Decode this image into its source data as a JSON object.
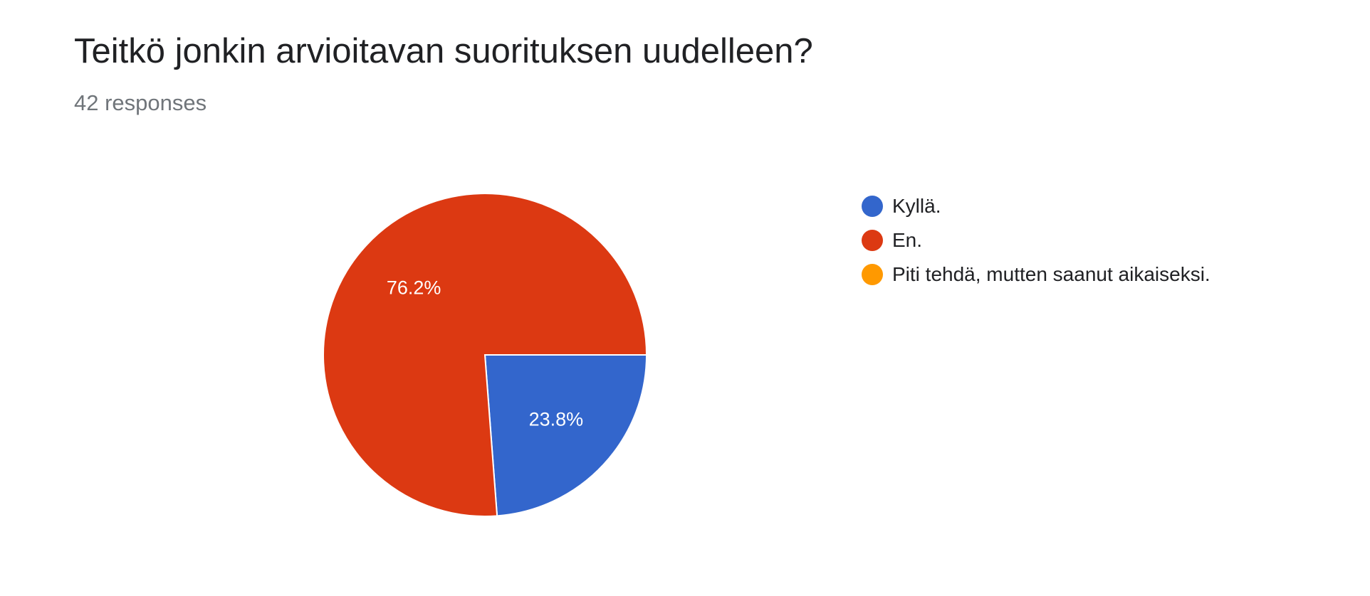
{
  "header": {
    "title": "Teitkö jonkin arvioitavan suorituksen uudelleen?",
    "responses": "42 responses"
  },
  "chart_data": {
    "type": "pie",
    "title": "Teitkö jonkin arvioitavan suorituksen uudelleen?",
    "categories": [
      "Kyllä.",
      "En.",
      "Piti tehdä, mutten saanut aikaiseksi."
    ],
    "values": [
      23.8,
      76.2,
      0
    ],
    "value_labels": [
      "23.8%",
      "76.2%",
      ""
    ],
    "colors": [
      "#3366CC",
      "#DC3912",
      "#FF9900"
    ],
    "legend_position": "right",
    "start_angle_deg": 90,
    "direction": "clockwise"
  }
}
